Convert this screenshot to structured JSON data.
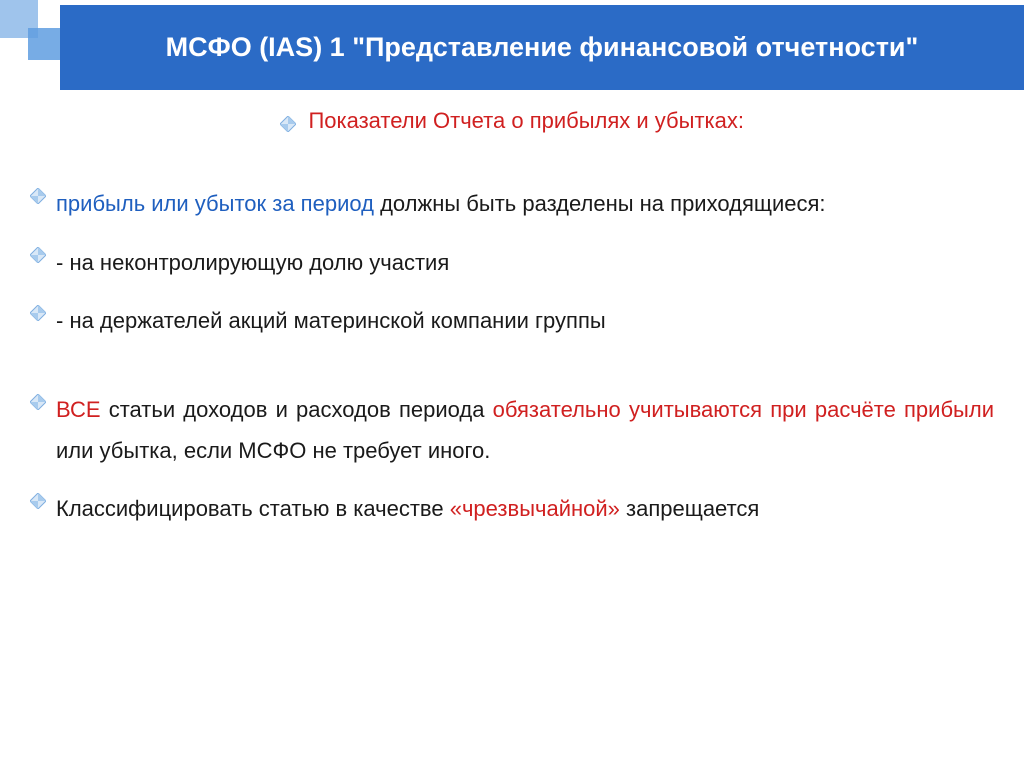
{
  "colors": {
    "title_bg": "#2b6bc6",
    "title_text": "#ffffff",
    "deco_light": "#9fc4ec",
    "deco_mid": "#5f9de0",
    "bullet_outline": "#7eaee0",
    "bullet_fill_lt": "#d9e8f7",
    "bullet_fill_dk": "#a8cbed",
    "text_default": "#1a1a1a",
    "text_red": "#d02020",
    "text_blue": "#1f5fbf"
  },
  "title": "МСФО (IAS) 1 \"Представление финансовой отчетности\"",
  "subtitle": "Показатели Отчета о прибылях и убытках:",
  "items": [
    {
      "justify": true,
      "spans": [
        {
          "text": "прибыль или убыток за период",
          "cls": "blue"
        },
        {
          "text": " должны быть разделены на приходящиеся:",
          "cls": ""
        }
      ]
    },
    {
      "justify": false,
      "spans": [
        {
          "text": "- на неконтролирующую долю участия",
          "cls": ""
        }
      ]
    },
    {
      "justify": false,
      "spans": [
        {
          "text": "- на держателей акций материнской компании группы",
          "cls": ""
        }
      ]
    },
    {
      "gap": true
    },
    {
      "justify": true,
      "spans": [
        {
          "text": "ВСЕ",
          "cls": "red"
        },
        {
          "text": " статьи доходов и расходов периода ",
          "cls": ""
        },
        {
          "text": "обязательно учитываются при расчёте прибыли",
          "cls": "red"
        },
        {
          "text": " или убытка, если МСФО не требует иного.",
          "cls": ""
        }
      ]
    },
    {
      "justify": false,
      "spans": [
        {
          "text": "Классифицировать статью в качестве ",
          "cls": ""
        },
        {
          "text": "«чрезвычайной»",
          "cls": "red"
        },
        {
          "text": " запрещается",
          "cls": ""
        }
      ]
    }
  ]
}
